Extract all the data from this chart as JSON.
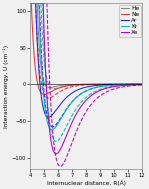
{
  "title": "",
  "xlabel": "Internuclear distance, R(Å)",
  "ylabel": "Interaction energy, U (cm⁻¹)",
  "xlim": [
    4,
    12
  ],
  "ylim": [
    -115,
    110
  ],
  "yticks": [
    -100,
    -50,
    0,
    50,
    100
  ],
  "xticks": [
    4,
    5,
    6,
    7,
    8,
    9,
    10,
    11,
    12
  ],
  "colors": {
    "He": "#888888",
    "Ne": "#ee3333",
    "Ar": "#2222ee",
    "Kr": "#00bbbb",
    "Xe": "#bb00bb"
  },
  "legend_labels": [
    "He",
    "Ne",
    "Ar",
    "Kr",
    "Xe"
  ],
  "background_color": "#f0f0f0",
  "params": {
    "He": {
      "solid": {
        "De": 4.5,
        "re": 5.4,
        "a": 2.0
      },
      "dashed": {
        "De": 6.0,
        "re": 5.7,
        "a": 1.8
      }
    },
    "Ne": {
      "solid": {
        "De": 14,
        "re": 5.0,
        "a": 1.5
      },
      "dashed": {
        "De": 19,
        "re": 5.3,
        "a": 1.4
      }
    },
    "Ar": {
      "solid": {
        "De": 45,
        "re": 5.3,
        "a": 1.15
      },
      "dashed": {
        "De": 58,
        "re": 5.6,
        "a": 1.05
      }
    },
    "Kr": {
      "solid": {
        "De": 62,
        "re": 5.55,
        "a": 1.05
      },
      "dashed": {
        "De": 78,
        "re": 5.85,
        "a": 0.98
      }
    },
    "Xe": {
      "solid": {
        "De": 95,
        "re": 5.85,
        "a": 0.98
      },
      "dashed": {
        "De": 112,
        "re": 6.15,
        "a": 0.92
      }
    }
  }
}
